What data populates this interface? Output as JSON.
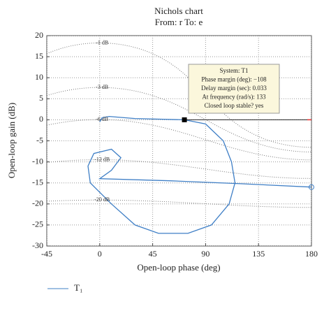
{
  "chart_data": {
    "type": "line",
    "title": "Nichols chart",
    "subtitle": "From: r To: e",
    "xlabel": "Open-loop phase (deg)",
    "ylabel": "Open-loop gain (dB)",
    "xlim": [
      -45,
      180
    ],
    "ylim": [
      -30,
      20
    ],
    "xticks": [
      -45,
      0,
      45,
      90,
      135,
      180
    ],
    "yticks": [
      20,
      15,
      10,
      5,
      0,
      -5,
      -10,
      -15,
      -20,
      -25,
      -30
    ],
    "grid": true,
    "grid_contours": [
      {
        "value": -1,
        "label": "-1 dB"
      },
      {
        "value": -3,
        "label": "-3 dB"
      },
      {
        "value": -6,
        "label": "-6 dB"
      },
      {
        "value": -12,
        "label": "-12 dB"
      },
      {
        "value": -20,
        "label": "-20 dB"
      }
    ],
    "series": [
      {
        "name": "T₁",
        "color": "#3f7fc6",
        "x": [
          0,
          2,
          8,
          30,
          72,
          90,
          105,
          112,
          115,
          110,
          95,
          75,
          50,
          30,
          10,
          -8,
          -10,
          -5,
          10,
          18,
          10,
          0,
          60,
          120,
          180
        ],
        "values": [
          -0.5,
          0.5,
          0.8,
          0.3,
          0,
          -1,
          -5,
          -10,
          -15,
          -20,
          -25,
          -27,
          -27,
          -25,
          -20,
          -15,
          -11,
          -8,
          -7,
          -9,
          -12,
          -14,
          -14.5,
          -15.2,
          -16
        ]
      }
    ],
    "datatip": {
      "x": 72,
      "y": 0,
      "lines": [
        "System: T1",
        "Phase margin (deg): −108",
        "Delay margin (sec): 0.033",
        "At frequency (rad/s): 133",
        "Closed loop stable? yes"
      ]
    }
  }
}
